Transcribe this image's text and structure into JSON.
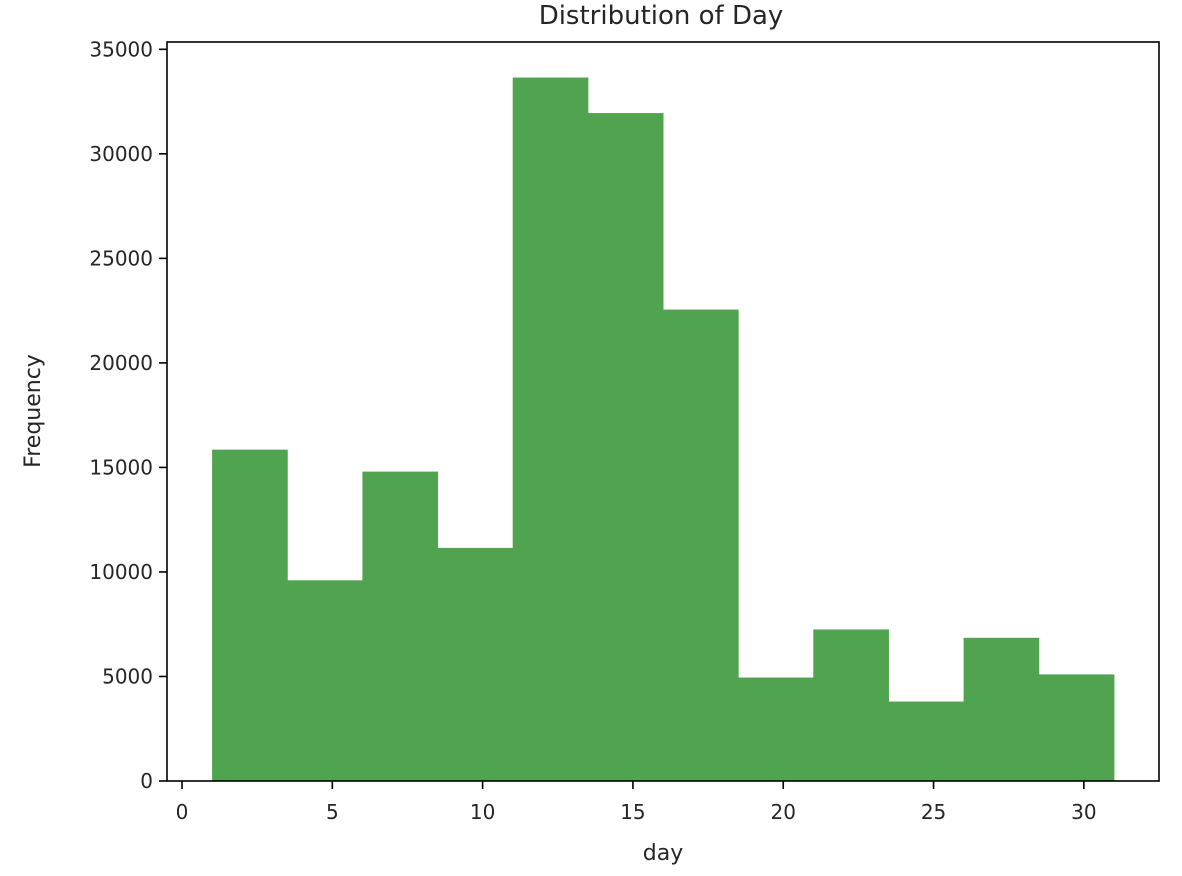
{
  "chart_data": {
    "type": "bar",
    "title": "Distribution of Day",
    "xlabel": "day",
    "ylabel": "Frequency",
    "bin_edges": [
      1,
      3.5,
      6,
      8.5,
      11,
      13.5,
      16,
      18.5,
      21,
      23.5,
      26,
      28.5,
      31
    ],
    "values": [
      15850,
      9600,
      14800,
      11150,
      33650,
      31950,
      22550,
      4950,
      7250,
      3800,
      6850,
      5100
    ],
    "xlim": [
      -0.5,
      32.5
    ],
    "ylim": [
      0,
      35350
    ],
    "xticks": [
      0,
      5,
      10,
      15,
      20,
      25,
      30
    ],
    "yticks": [
      0,
      5000,
      10000,
      15000,
      20000,
      25000,
      30000,
      35000
    ],
    "bar_color": "#50a450",
    "grid": false,
    "legend": "none"
  }
}
